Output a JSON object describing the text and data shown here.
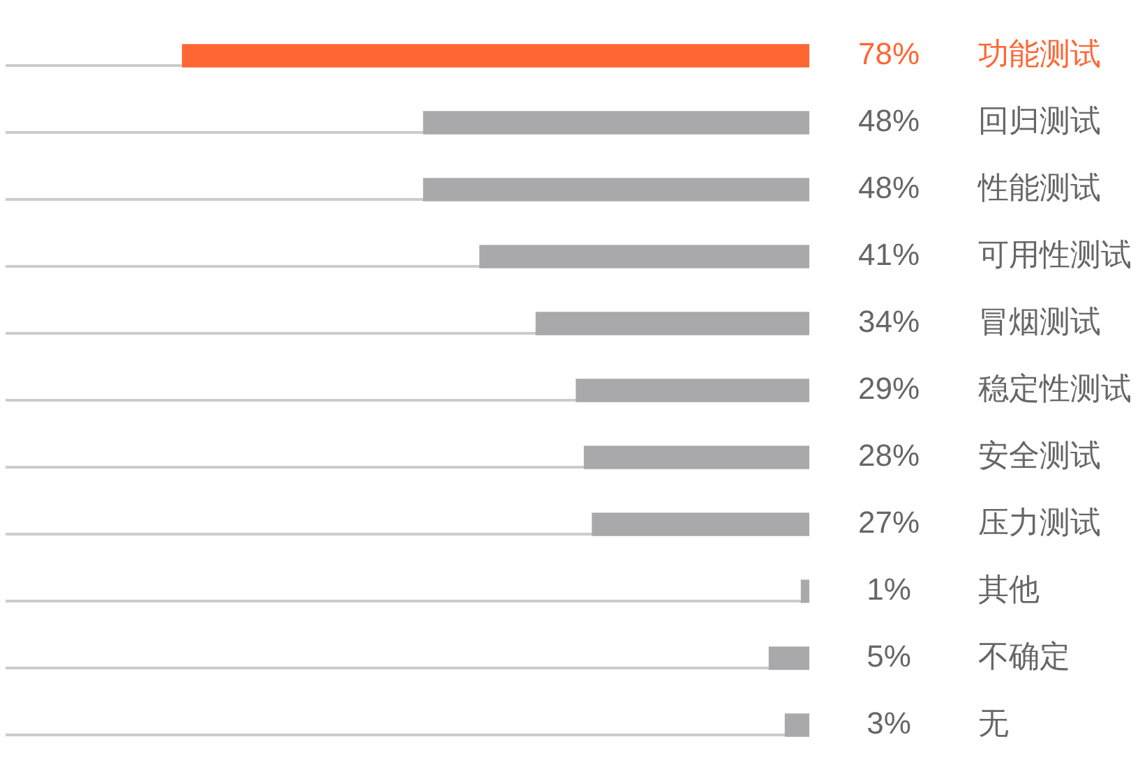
{
  "chart_data": {
    "type": "bar",
    "orientation": "horizontal",
    "categories": [
      "功能测试",
      "回归测试",
      "性能测试",
      "可用性测试",
      "冒烟测试",
      "稳定性测试",
      "安全测试",
      "压力测试",
      "其他",
      "不确定",
      "无"
    ],
    "values": [
      78,
      48,
      48,
      41,
      34,
      29,
      28,
      27,
      1,
      5,
      3
    ],
    "colors": [
      "#ff6633",
      "#a9a9ab",
      "#a9a9ab",
      "#a9a9ab",
      "#a9a9ab",
      "#a9a9ab",
      "#a9a9ab",
      "#a9a9ab",
      "#a9a9ab",
      "#a9a9ab",
      "#a9a9ab"
    ],
    "value_labels": [
      "78%",
      "48%",
      "48%",
      "41%",
      "34%",
      "29%",
      "28%",
      "27%",
      "1%",
      "5%",
      "3%"
    ],
    "xlim": [
      100,
      0
    ],
    "grid": "y",
    "tick_labels": "y"
  }
}
